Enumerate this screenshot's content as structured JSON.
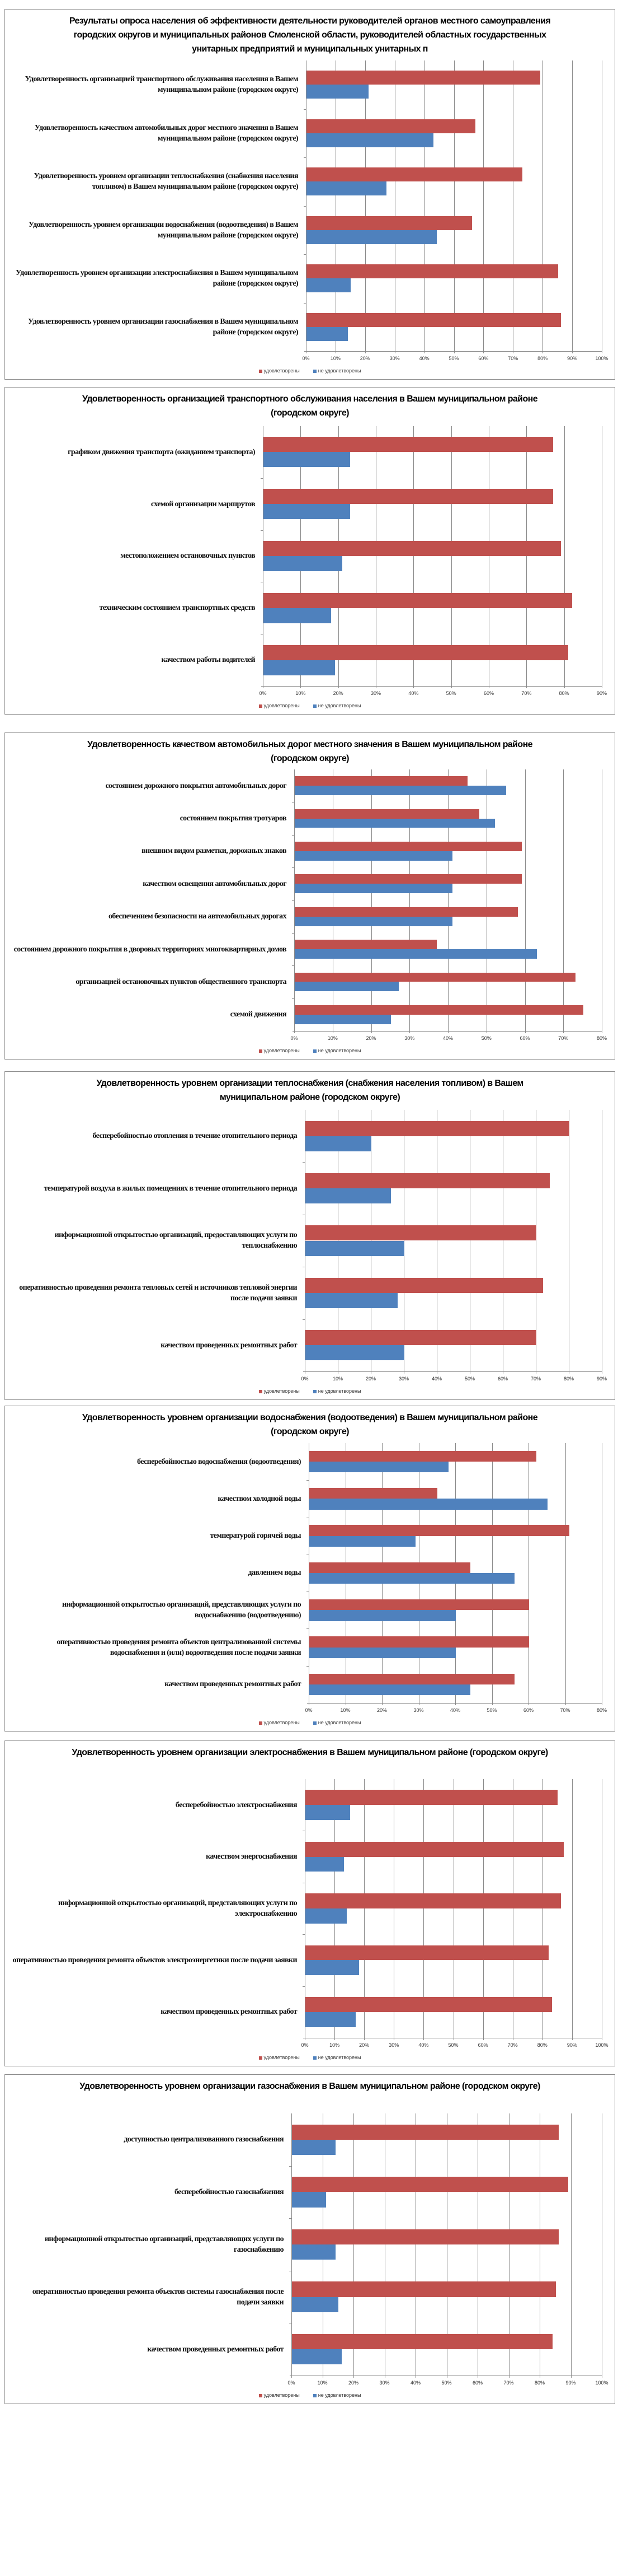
{
  "colors": {
    "satisfied": "#C0504D",
    "not_satisfied": "#4F81BD",
    "grid": "#8A8A8A"
  },
  "chart_data": [
    {
      "type": "bar",
      "orientation": "horizontal",
      "title": "Результаты опроса населения об эффективности деятельности руководителей органов местного самоуправления городских округов и муниципальных районов Смоленской области, руководителей областных государственных унитарных предприятий и муниципальных унитарных п",
      "categories": [
        "Удовлетворенность организацией транспортного обслуживания населения в Вашем муниципальном районе (городском округе)",
        "Удовлетворенность качеством автомобильных дорог местного значения в Вашем муниципальном районе (городском округе)",
        "Удовлетворенность уровнем организации теплоснабжения (снабжения населения топливом) в Вашем муниципальном районе (городском округе)",
        "Удовлетворенность уровнем организации водоснабжения (водоотведения) в Вашем муниципальном районе (городском округе)",
        "Удовлетворенность уровнем организации электроснабжения в Вашем муниципальном районе (городском округе)",
        "Удовлетворенность уровнем организации газоснабжения в Вашем муниципальном районе (городском округе)"
      ],
      "series": [
        {
          "name": "удовлетворены",
          "values": [
            79,
            57,
            73,
            56,
            85,
            86
          ]
        },
        {
          "name": "не удовлетворены",
          "values": [
            21,
            43,
            27,
            44,
            15,
            14
          ]
        }
      ],
      "xlim": [
        0,
        100
      ],
      "ticks": [
        "0%",
        "10%",
        "20%",
        "30%",
        "40%",
        "50%",
        "60%",
        "70%",
        "80%",
        "90%",
        "100%"
      ],
      "grid": true,
      "legend": "bottom"
    },
    {
      "type": "bar",
      "orientation": "horizontal",
      "title": "Удовлетворенность организацией транспортного обслуживания населения в Вашем муниципальном районе (городском округе)",
      "categories": [
        "графиком движения транспорта (ожиданием транспорта)",
        "схемой организации маршрутов",
        "местоположением остановочных пунктов",
        "техническим состоянием транспортных средств",
        "качеством работы водителей"
      ],
      "series": [
        {
          "name": "удовлетворены",
          "values": [
            77,
            77,
            79,
            82,
            81
          ]
        },
        {
          "name": "не удовлетворены",
          "values": [
            23,
            23,
            21,
            18,
            19
          ]
        }
      ],
      "xlim": [
        0,
        90
      ],
      "ticks": [
        "0%",
        "10%",
        "20%",
        "30%",
        "40%",
        "50%",
        "60%",
        "70%",
        "80%",
        "90%"
      ],
      "grid": true,
      "legend": "bottom"
    },
    {
      "type": "bar",
      "orientation": "horizontal",
      "title": "Удовлетворенность качеством автомобильных дорог местного значения в Вашем муниципальном районе (городском округе)",
      "categories": [
        "состоянием дорожного покрытия автомобильных дорог",
        "состоянием покрытия тротуаров",
        "внешним видом разметки, дорожных знаков",
        "качеством освещения автомобильных дорог",
        "обеспечением безопасности на автомобильных дорогах",
        "состоянием дорожного покрытия в дворовых территориях многоквартирных домов",
        "организацией остановочных пунктов общественного транспорта",
        "схемой движения"
      ],
      "series": [
        {
          "name": "удовлетворены",
          "values": [
            45,
            48,
            59,
            59,
            58,
            37,
            73,
            75
          ]
        },
        {
          "name": "не удовлетворены",
          "values": [
            55,
            52,
            41,
            41,
            41,
            63,
            27,
            25
          ]
        }
      ],
      "xlim": [
        0,
        80
      ],
      "ticks": [
        "0%",
        "10%",
        "20%",
        "30%",
        "40%",
        "50%",
        "60%",
        "70%",
        "80%"
      ],
      "grid": true,
      "legend": "bottom"
    },
    {
      "type": "bar",
      "orientation": "horizontal",
      "title": "Удовлетворенность уровнем организации теплоснабжения (снабжения населения топливом) в Вашем муниципальном районе (городском округе)",
      "categories": [
        "бесперебойностью отопления в течение отопительного периода",
        "температурой воздуха в жилых помещениях в течение отопительного периода",
        "информационной открытостью организаций, предоставляющих услуги по теплоснабжению",
        "оперативностью проведения ремонта тепловых сетей и источников тепловой энергии после подачи заявки",
        "качеством проведенных ремонтных работ"
      ],
      "series": [
        {
          "name": "удовлетворены",
          "values": [
            80,
            74,
            70,
            72,
            70
          ]
        },
        {
          "name": "не удовлетворены",
          "values": [
            20,
            26,
            30,
            28,
            30
          ]
        }
      ],
      "xlim": [
        0,
        90
      ],
      "ticks": [
        "0%",
        "10%",
        "20%",
        "30%",
        "40%",
        "50%",
        "60%",
        "70%",
        "80%",
        "90%"
      ],
      "grid": true,
      "legend": "bottom"
    },
    {
      "type": "bar",
      "orientation": "horizontal",
      "title": "Удовлетворенность уровнем организации водоснабжения (водоотведения) в Вашем муниципальном районе (городском округе)",
      "categories": [
        "бесперебойностью водоснабжения (водоотведения)",
        "качеством холодной воды",
        "температурой горячей воды",
        "давлением воды",
        "информационной открытостью организаций, представляющих услуги по водоснабжению (водоотведению)",
        "оперативностью проведения ремонта объектов централизованной системы водоснабжения и (или) водоотведения после подачи заявки",
        "качеством проведенных ремонтных работ"
      ],
      "series": [
        {
          "name": "удовлетворены",
          "values": [
            62,
            35,
            71,
            44,
            60,
            60,
            56
          ]
        },
        {
          "name": "не удовлетворены",
          "values": [
            38,
            65,
            29,
            56,
            40,
            40,
            44
          ]
        }
      ],
      "xlim": [
        0,
        80
      ],
      "ticks": [
        "0%",
        "10%",
        "20%",
        "30%",
        "40%",
        "50%",
        "60%",
        "70%",
        "80%"
      ],
      "grid": true,
      "legend": "bottom"
    },
    {
      "type": "bar",
      "orientation": "horizontal",
      "title": "Удовлетворенность уровнем организации электроснабжения в Вашем муниципальном районе (городском округе)",
      "categories": [
        "бесперебойностью электроснабжения",
        "качеством энергоснабжения",
        "информационной открытостью организаций, представляющих услуги по электроснабжению",
        "оперативностью проведения ремонта объектов электроэнергетики после подачи заявки",
        "качеством проведенных ремонтных работ"
      ],
      "series": [
        {
          "name": "удовлетворены",
          "values": [
            85,
            87,
            86,
            82,
            83
          ]
        },
        {
          "name": "не удовлетворены",
          "values": [
            15,
            13,
            14,
            18,
            17
          ]
        }
      ],
      "xlim": [
        0,
        100
      ],
      "ticks": [
        "0%",
        "10%",
        "20%",
        "30%",
        "40%",
        "50%",
        "60%",
        "70%",
        "80%",
        "90%",
        "100%"
      ],
      "grid": true,
      "legend": "bottom"
    },
    {
      "type": "bar",
      "orientation": "horizontal",
      "title": "Удовлетворенность уровнем организации газоснабжения в Вашем муниципальном районе (городском округе)",
      "categories": [
        "доступностью централизованного газоснабжения",
        "бесперебойностью газоснабжения",
        "информационной открытостью организаций, представляющих услуги по газоснабжению",
        "оперативностью проведения ремонта объектов системы газоснабжения после подачи заявки",
        "качеством проведенных ремонтных работ"
      ],
      "series": [
        {
          "name": "удовлетворены",
          "values": [
            86,
            89,
            86,
            85,
            84
          ]
        },
        {
          "name": "не удовлетворены",
          "values": [
            14,
            11,
            14,
            15,
            16
          ]
        }
      ],
      "xlim": [
        0,
        100
      ],
      "ticks": [
        "0%",
        "10%",
        "20%",
        "30%",
        "40%",
        "50%",
        "60%",
        "70%",
        "80%",
        "90%",
        "100%"
      ],
      "grid": true,
      "legend": "bottom"
    }
  ]
}
